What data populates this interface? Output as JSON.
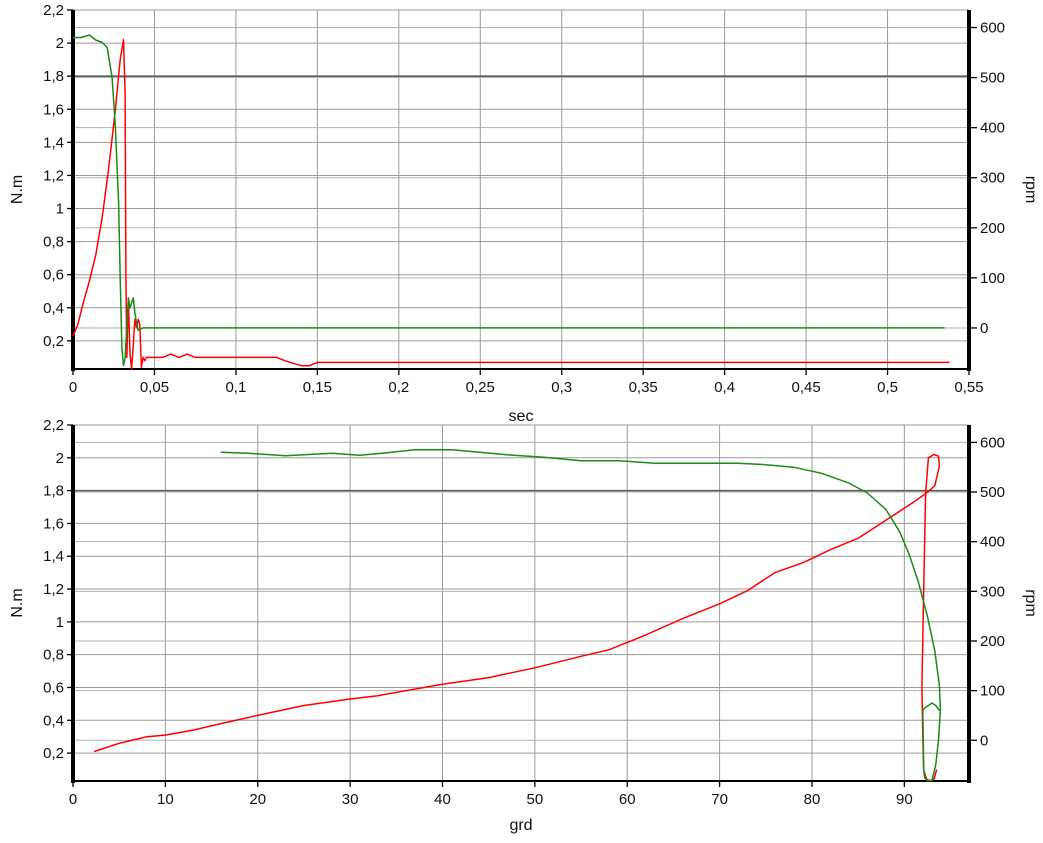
{
  "chart_data": [
    {
      "type": "line",
      "xlabel": "sec",
      "ylabel": "N.m",
      "y2label": "rpm",
      "xlim": [
        0,
        0.55
      ],
      "ylim": [
        0.03,
        2.2
      ],
      "y2lim": [
        -82,
        635
      ],
      "xticks": [
        "0",
        "0,05",
        "0,1",
        "0,15",
        "0,2",
        "0,25",
        "0,3",
        "0,35",
        "0,4",
        "0,45",
        "0,5",
        "0,55"
      ],
      "yticks": [
        "0,2",
        "0,4",
        "0,6",
        "0,8",
        "1",
        "1,2",
        "1,4",
        "1,6",
        "1,8",
        "2",
        "2,2"
      ],
      "y2ticks": [
        "0",
        "100",
        "200",
        "300",
        "400",
        "500",
        "600"
      ],
      "grid": true,
      "series": [
        {
          "color": "#ff0000",
          "axis": "left",
          "x": [
            0,
            0.003,
            0.006,
            0.01,
            0.014,
            0.018,
            0.022,
            0.026,
            0.029,
            0.031,
            0.032,
            0.0325,
            0.033,
            0.034,
            0.035,
            0.036,
            0.037,
            0.038,
            0.039,
            0.04,
            0.041,
            0.042,
            0.043,
            0.044,
            0.045,
            0.047,
            0.05,
            0.055,
            0.06,
            0.065,
            0.07,
            0.075,
            0.1,
            0.125,
            0.13,
            0.14,
            0.145,
            0.15,
            0.2,
            0.3,
            0.4,
            0.5,
            0.538
          ],
          "y": [
            0.23,
            0.3,
            0.42,
            0.56,
            0.72,
            0.95,
            1.25,
            1.6,
            1.9,
            2.02,
            1.7,
            0.6,
            0.1,
            0.45,
            0.12,
            0.03,
            0.18,
            0.33,
            0.28,
            0.33,
            0.3,
            0.04,
            0.1,
            0.08,
            0.1,
            0.1,
            0.1,
            0.1,
            0.12,
            0.1,
            0.12,
            0.1,
            0.1,
            0.1,
            0.08,
            0.05,
            0.05,
            0.07,
            0.07,
            0.07,
            0.07,
            0.07,
            0.07
          ]
        },
        {
          "color": "#1a8a1a",
          "axis": "right",
          "x": [
            0,
            0.005,
            0.01,
            0.014,
            0.018,
            0.021,
            0.024,
            0.026,
            0.028,
            0.029,
            0.03,
            0.031,
            0.032,
            0.033,
            0.034,
            0.035,
            0.036,
            0.037,
            0.038,
            0.039,
            0.04,
            0.041,
            0.042,
            0.043,
            0.1,
            0.2,
            0.3,
            0.4,
            0.5,
            0.535
          ],
          "y": [
            580,
            580,
            585,
            575,
            570,
            560,
            500,
            400,
            250,
            100,
            -40,
            -75,
            -60,
            0,
            60,
            40,
            50,
            60,
            30,
            10,
            -5,
            -2,
            -2,
            0,
            0,
            0,
            0,
            0,
            0,
            0
          ]
        }
      ]
    },
    {
      "type": "line",
      "xlabel": "grd",
      "ylabel": "N.m",
      "y2label": "rpm",
      "xlim": [
        0,
        97
      ],
      "ylim": [
        0.03,
        2.2
      ],
      "y2lim": [
        -82,
        635
      ],
      "xticks": [
        "0",
        "10",
        "20",
        "30",
        "40",
        "50",
        "60",
        "70",
        "80",
        "90"
      ],
      "yticks": [
        "0,2",
        "0,4",
        "0,6",
        "0,8",
        "1",
        "1,2",
        "1,4",
        "1,6",
        "1,8",
        "2",
        "2,2"
      ],
      "y2ticks": [
        "0",
        "100",
        "200",
        "300",
        "400",
        "500",
        "600"
      ],
      "grid": true,
      "series": [
        {
          "color": "#ff0000",
          "axis": "left",
          "x": [
            2.3,
            5,
            8,
            10,
            13,
            16,
            20,
            25,
            30,
            33,
            36,
            40,
            45,
            50,
            55,
            58,
            62,
            66,
            70,
            73,
            76,
            79,
            82,
            85,
            88,
            91,
            92.5,
            93.3,
            93.8,
            93.7,
            93.2,
            92.6,
            92.3,
            92.2,
            92.1,
            92.0,
            91.9,
            92.0,
            92.1,
            92.2,
            92.4,
            92.8,
            93.2,
            93.5
          ],
          "y": [
            0.21,
            0.26,
            0.3,
            0.31,
            0.34,
            0.38,
            0.43,
            0.49,
            0.53,
            0.55,
            0.58,
            0.62,
            0.66,
            0.72,
            0.79,
            0.83,
            0.92,
            1.02,
            1.11,
            1.19,
            1.3,
            1.36,
            1.44,
            1.51,
            1.62,
            1.73,
            1.79,
            1.83,
            1.95,
            2.01,
            2.02,
            2.0,
            1.78,
            1.5,
            1.2,
            0.9,
            0.6,
            0.3,
            0.1,
            0.05,
            0.04,
            0.03,
            0.04,
            0.1
          ]
        },
        {
          "color": "#1a8a1a",
          "axis": "right",
          "x": [
            16,
            19,
            23,
            28,
            31,
            34,
            37,
            41,
            44,
            47,
            51,
            55,
            59,
            63,
            68,
            72,
            75,
            78,
            81,
            84,
            86,
            88,
            89.5,
            90.5,
            91.5,
            92.5,
            93.3,
            93.8,
            93.9,
            93.7,
            93.4,
            93.0,
            92.5,
            92.1,
            92.0,
            92.2,
            92.6,
            93.0,
            93.4,
            93.8
          ],
          "y": [
            580,
            578,
            573,
            578,
            574,
            579,
            585,
            585,
            580,
            575,
            570,
            563,
            563,
            558,
            558,
            558,
            555,
            550,
            538,
            518,
            498,
            465,
            420,
            375,
            320,
            250,
            180,
            110,
            60,
            0,
            -50,
            -80,
            -82,
            -60,
            60,
            65,
            70,
            75,
            70,
            60
          ]
        }
      ]
    }
  ]
}
